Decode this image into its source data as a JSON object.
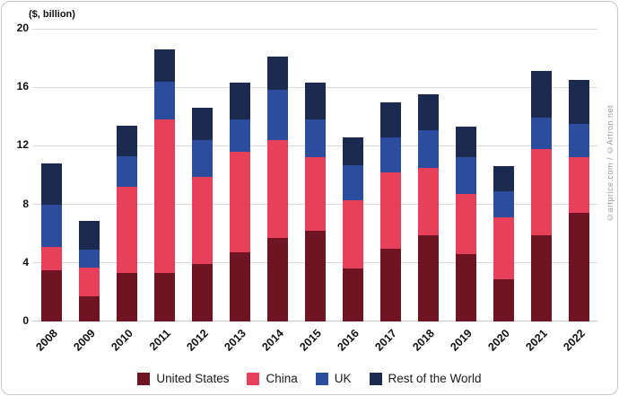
{
  "chart_data": {
    "type": "bar",
    "stacked": true,
    "y_axis_title": "($, billion)",
    "watermark": "©artprice.com / ©Artron.net",
    "ylim": [
      0,
      20
    ],
    "yticks": [
      0,
      4,
      8,
      12,
      16,
      20
    ],
    "categories": [
      "2008",
      "2009",
      "2010",
      "2011",
      "2012",
      "2013",
      "2014",
      "2015",
      "2016",
      "2017",
      "2018",
      "2019",
      "2020",
      "2021",
      "2022"
    ],
    "series": [
      {
        "name": "United States",
        "color": "#6e1423",
        "values": [
          3.5,
          1.7,
          3.3,
          3.3,
          3.9,
          4.7,
          5.7,
          6.2,
          3.6,
          5.0,
          5.9,
          4.6,
          2.9,
          5.9,
          7.4
        ]
      },
      {
        "name": "China",
        "color": "#e8405a",
        "values": [
          1.6,
          2.0,
          5.9,
          10.5,
          6.0,
          6.9,
          6.7,
          5.0,
          4.7,
          5.2,
          4.6,
          4.1,
          4.2,
          5.9,
          3.8
        ]
      },
      {
        "name": "UK",
        "color": "#2c4d9e",
        "values": [
          2.9,
          1.2,
          2.1,
          2.6,
          2.5,
          2.2,
          3.4,
          2.6,
          2.4,
          2.4,
          2.6,
          2.5,
          1.8,
          2.1,
          2.3
        ]
      },
      {
        "name": "Rest of the World",
        "color": "#1b2a4e",
        "values": [
          2.8,
          2.0,
          2.1,
          2.2,
          2.2,
          2.5,
          2.3,
          2.5,
          1.9,
          2.4,
          2.4,
          2.1,
          1.7,
          3.2,
          3.0
        ]
      }
    ],
    "legend_position": "bottom",
    "grid": true
  }
}
